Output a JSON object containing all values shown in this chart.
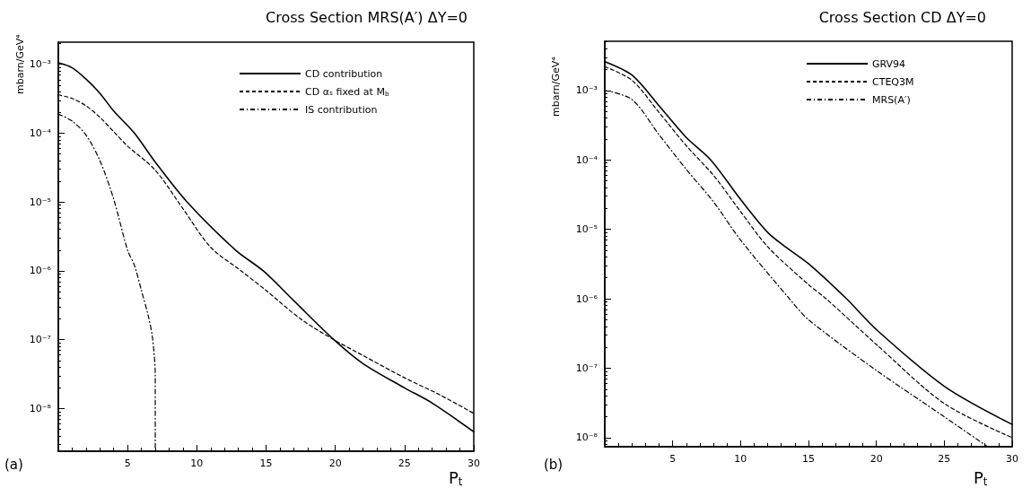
{
  "chart_data": [
    {
      "type": "line",
      "title": "Cross Section MRS(A′) ΔY=0",
      "ylabel": "mbarn/GeV⁴",
      "xlabel": "P$_{t}$",
      "annotations": [
        "(a)"
      ],
      "xlim": [
        0,
        30
      ],
      "xticks": [
        5,
        10,
        15,
        20,
        25,
        30
      ],
      "ylim": [
        2.4e-09,
        0.0021
      ],
      "log": "y",
      "legend": "top right",
      "yticks": [
        {
          "value": 0.001,
          "label": "10⁻³"
        },
        {
          "value": 0.0001,
          "label": "10⁻⁴"
        },
        {
          "value": 1e-05,
          "label": "10⁻⁵"
        },
        {
          "value": 1e-06,
          "label": "10⁻⁶"
        },
        {
          "value": 1e-07,
          "label": "10⁻⁷"
        },
        {
          "value": 1e-08,
          "label": "10⁻⁸"
        }
      ],
      "series": [
        {
          "name": "CD contribution",
          "color": "#000000",
          "line_style": "solid",
          "x": [
            0,
            1,
            2,
            3,
            4,
            5.5,
            7,
            9.3,
            12.8,
            14.8,
            17,
            19.9,
            22,
            25,
            27,
            30
          ],
          "values": [
            0.00105,
            0.00089,
            0.00061,
            0.00038,
            0.00021,
            0.0001,
            3.8e-05,
            1e-05,
            2e-06,
            1e-06,
            3.7e-07,
            1e-07,
            4.5e-08,
            2e-08,
            1.2e-08,
            4.6e-09
          ]
        },
        {
          "name": "CD αₛ fixed at M$_{b}$",
          "color": "#000000",
          "line_style": "dashed",
          "x": [
            0,
            1,
            2,
            3,
            4,
            5,
            7,
            9,
            11,
            13.2,
            15,
            17.5,
            19.9,
            22,
            25,
            27.5,
            30
          ],
          "values": [
            0.00036,
            0.00032,
            0.00025,
            0.00017,
            0.000105,
            6.5e-05,
            2.9e-05,
            8e-06,
            2.2e-06,
            1e-06,
            5.2e-07,
            2e-07,
            1e-07,
            5.9e-08,
            2.8e-08,
            1.6e-08,
            8.5e-09
          ]
        },
        {
          "name": "IS contribution",
          "color": "#000000",
          "line_style": "dotted",
          "x": [
            0,
            1,
            2,
            3,
            4,
            5,
            5.5,
            6,
            6.5,
            6.8,
            7,
            7
          ],
          "values": [
            0.00019,
            0.00015,
            9.4e-05,
            4e-05,
            1.1e-05,
            2e-06,
            1.2e-06,
            5.2e-07,
            2.2e-07,
            1.07e-07,
            3e-08,
            2.4e-09
          ]
        }
      ]
    },
    {
      "type": "line",
      "title": "Cross Section CD ΔY=0",
      "ylabel": "mbarn/GeV⁴",
      "xlabel": "P$_{t}$",
      "annotations": [
        "(b)"
      ],
      "xlim": [
        0,
        30
      ],
      "xticks": [
        5,
        10,
        15,
        20,
        25,
        30
      ],
      "ylim": [
        7.4e-09,
        0.0051
      ],
      "log": "y",
      "legend": "top right",
      "yticks": [
        {
          "value": 0.001,
          "label": "10⁻³"
        },
        {
          "value": 0.0001,
          "label": "10⁻⁴"
        },
        {
          "value": 1e-05,
          "label": "10⁻⁵"
        },
        {
          "value": 1e-06,
          "label": "10⁻⁶"
        },
        {
          "value": 1e-07,
          "label": "10⁻⁷"
        },
        {
          "value": 1e-08,
          "label": "10⁻⁸"
        }
      ],
      "series": [
        {
          "name": "GRV94",
          "color": "#000000",
          "line_style": "solid",
          "x": [
            0,
            2,
            4,
            6,
            7.8,
            10,
            12,
            13.3,
            15,
            17.8,
            20,
            25,
            30
          ],
          "values": [
            0.0026,
            0.00166,
            0.0006,
            0.00021,
            0.0001,
            2.7e-05,
            9e-06,
            5.6e-06,
            3.2e-06,
            1e-06,
            3.6e-07,
            5.5e-08,
            1.55e-08
          ]
        },
        {
          "name": "CTEQ3M",
          "color": "#000000",
          "line_style": "dashed",
          "x": [
            0,
            2,
            4,
            6,
            8,
            10,
            12,
            15,
            16.3,
            20,
            25,
            30
          ],
          "values": [
            0.0022,
            0.0014,
            0.00048,
            0.00016,
            6e-05,
            1.8e-05,
            5.6e-06,
            1.6e-06,
            1e-06,
            2.2e-07,
            3.1e-08,
            1e-08
          ]
        },
        {
          "name": "MRS(A′)",
          "color": "#000000",
          "line_style": "dotted",
          "x": [
            0,
            2,
            4,
            6,
            8,
            10,
            13.6,
            15,
            20,
            25,
            28.2
          ],
          "values": [
            0.001,
            0.00074,
            0.00023,
            7.3e-05,
            2.5e-05,
            7e-06,
            1e-06,
            5e-07,
            9.3e-08,
            2e-08,
            7.4e-09
          ]
        }
      ]
    }
  ]
}
